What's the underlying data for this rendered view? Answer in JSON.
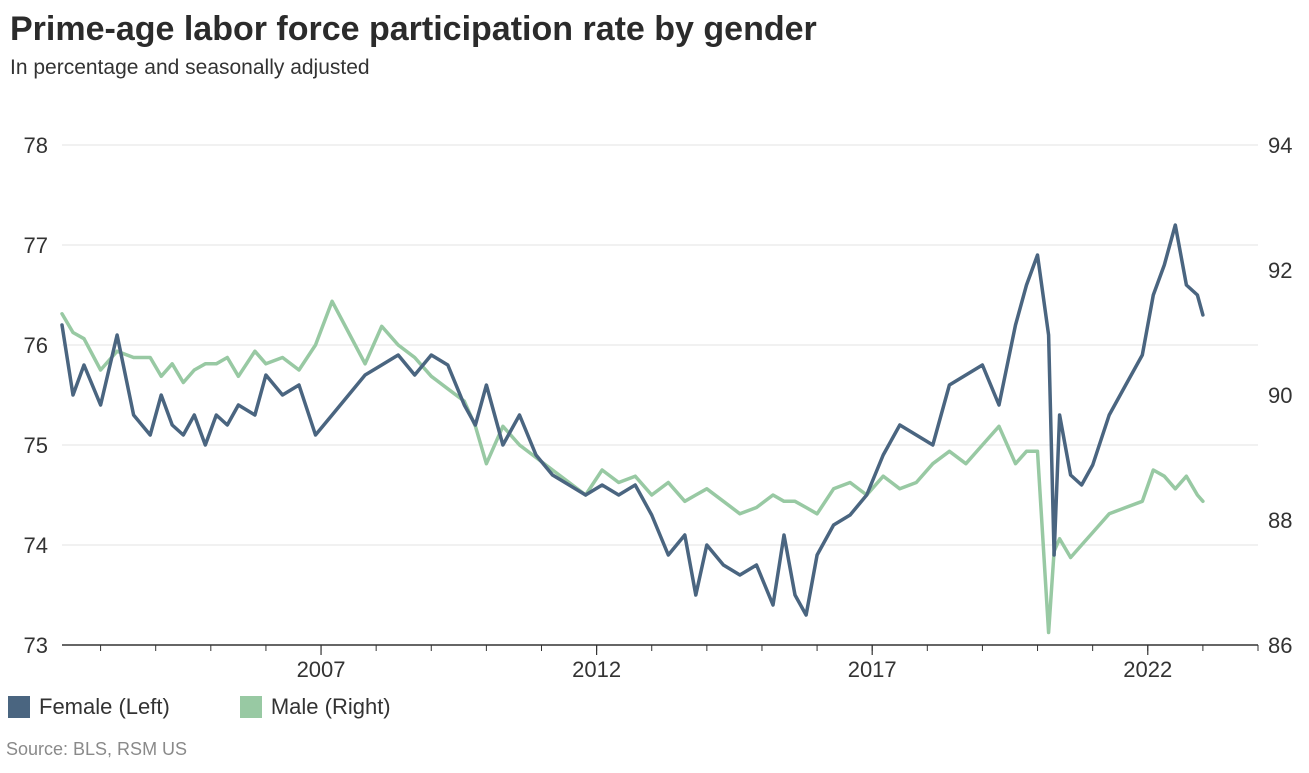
{
  "title": "Prime-age labor force participation rate by gender",
  "subtitle": "In percentage and seasonally adjusted",
  "source": "Source: BLS, RSM US",
  "colors": {
    "female": "#4a6580",
    "male": "#98c9a3",
    "grid": "#e3e3e3",
    "axis": "#333333"
  },
  "chart_data": {
    "type": "line",
    "title": "Prime-age labor force participation rate by gender",
    "xlabel": "",
    "x_ticks": [
      "2007",
      "2012",
      "2017",
      "2022"
    ],
    "x_tick_values": [
      2007,
      2012,
      2017,
      2022
    ],
    "xlim": [
      2002.3,
      2024
    ],
    "left_axis": {
      "label": "Female (Left)",
      "ylim": [
        73,
        78
      ],
      "ticks": [
        "73",
        "74",
        "75",
        "76",
        "77",
        "78"
      ]
    },
    "right_axis": {
      "label": "Male (Right)",
      "ylim": [
        86,
        94
      ],
      "ticks": [
        "86",
        "88",
        "90",
        "92",
        "94"
      ]
    },
    "grid": true,
    "legend_position": "bottom-left",
    "series": [
      {
        "name": "Female (Left)",
        "axis": "left",
        "x": [
          2002.3,
          2002.5,
          2002.7,
          2003.0,
          2003.3,
          2003.6,
          2003.9,
          2004.1,
          2004.3,
          2004.5,
          2004.7,
          2004.9,
          2005.1,
          2005.3,
          2005.5,
          2005.8,
          2006.0,
          2006.3,
          2006.6,
          2006.9,
          2007.2,
          2007.5,
          2007.8,
          2008.1,
          2008.4,
          2008.7,
          2009.0,
          2009.3,
          2009.6,
          2009.8,
          2010.0,
          2010.3,
          2010.6,
          2010.9,
          2011.2,
          2011.5,
          2011.8,
          2012.1,
          2012.4,
          2012.7,
          2013.0,
          2013.3,
          2013.6,
          2013.8,
          2014.0,
          2014.3,
          2014.6,
          2014.9,
          2015.2,
          2015.4,
          2015.6,
          2015.8,
          2016.0,
          2016.3,
          2016.6,
          2016.9,
          2017.2,
          2017.5,
          2017.8,
          2018.1,
          2018.4,
          2018.7,
          2019.0,
          2019.3,
          2019.6,
          2019.8,
          2020.0,
          2020.2,
          2020.3,
          2020.4,
          2020.6,
          2020.8,
          2021.0,
          2021.3,
          2021.6,
          2021.9,
          2022.1,
          2022.3,
          2022.5,
          2022.7,
          2022.9,
          2023.0
        ],
        "values": [
          76.2,
          75.5,
          75.8,
          75.4,
          76.1,
          75.3,
          75.1,
          75.5,
          75.2,
          75.1,
          75.3,
          75.0,
          75.3,
          75.2,
          75.4,
          75.3,
          75.7,
          75.5,
          75.6,
          75.1,
          75.3,
          75.5,
          75.7,
          75.8,
          75.9,
          75.7,
          75.9,
          75.8,
          75.4,
          75.2,
          75.6,
          75.0,
          75.3,
          74.9,
          74.7,
          74.6,
          74.5,
          74.6,
          74.5,
          74.6,
          74.3,
          73.9,
          74.1,
          73.5,
          74.0,
          73.8,
          73.7,
          73.8,
          73.4,
          74.1,
          73.5,
          73.3,
          73.9,
          74.2,
          74.3,
          74.5,
          74.9,
          75.2,
          75.1,
          75.0,
          75.6,
          75.7,
          75.8,
          75.4,
          76.2,
          76.6,
          76.9,
          76.1,
          73.9,
          75.3,
          74.7,
          74.6,
          74.8,
          75.3,
          75.6,
          75.9,
          76.5,
          76.8,
          77.2,
          76.6,
          76.5,
          76.3
        ]
      },
      {
        "name": "Male (Right)",
        "axis": "right",
        "x": [
          2002.3,
          2002.5,
          2002.7,
          2003.0,
          2003.3,
          2003.6,
          2003.9,
          2004.1,
          2004.3,
          2004.5,
          2004.7,
          2004.9,
          2005.1,
          2005.3,
          2005.5,
          2005.8,
          2006.0,
          2006.3,
          2006.6,
          2006.9,
          2007.2,
          2007.5,
          2007.8,
          2008.1,
          2008.4,
          2008.7,
          2009.0,
          2009.3,
          2009.6,
          2009.8,
          2010.0,
          2010.3,
          2010.6,
          2010.9,
          2011.2,
          2011.5,
          2011.8,
          2012.1,
          2012.4,
          2012.7,
          2013.0,
          2013.3,
          2013.6,
          2013.8,
          2014.0,
          2014.3,
          2014.6,
          2014.9,
          2015.2,
          2015.4,
          2015.6,
          2015.8,
          2016.0,
          2016.3,
          2016.6,
          2016.9,
          2017.2,
          2017.5,
          2017.8,
          2018.1,
          2018.4,
          2018.7,
          2019.0,
          2019.3,
          2019.6,
          2019.8,
          2020.0,
          2020.2,
          2020.3,
          2020.4,
          2020.6,
          2020.8,
          2021.0,
          2021.3,
          2021.6,
          2021.9,
          2022.1,
          2022.3,
          2022.5,
          2022.7,
          2022.9,
          2023.0
        ],
        "values": [
          91.3,
          91.0,
          90.9,
          90.4,
          90.7,
          90.6,
          90.6,
          90.3,
          90.5,
          90.2,
          90.4,
          90.5,
          90.5,
          90.6,
          90.3,
          90.7,
          90.5,
          90.6,
          90.4,
          90.8,
          91.5,
          91.0,
          90.5,
          91.1,
          90.8,
          90.6,
          90.3,
          90.1,
          89.9,
          89.5,
          88.9,
          89.5,
          89.2,
          89.0,
          88.8,
          88.6,
          88.4,
          88.8,
          88.6,
          88.7,
          88.4,
          88.6,
          88.3,
          88.4,
          88.5,
          88.3,
          88.1,
          88.2,
          88.4,
          88.3,
          88.3,
          88.2,
          88.1,
          88.5,
          88.6,
          88.4,
          88.7,
          88.5,
          88.6,
          88.9,
          89.1,
          88.9,
          89.2,
          89.5,
          88.9,
          89.1,
          89.1,
          86.2,
          87.5,
          87.7,
          87.4,
          87.6,
          87.8,
          88.1,
          88.2,
          88.3,
          88.8,
          88.7,
          88.5,
          88.7,
          88.4,
          88.3
        ]
      }
    ]
  },
  "legend": [
    {
      "label": "Female (Left)",
      "color": "#4a6580"
    },
    {
      "label": "Male (Right)",
      "color": "#98c9a3"
    }
  ]
}
